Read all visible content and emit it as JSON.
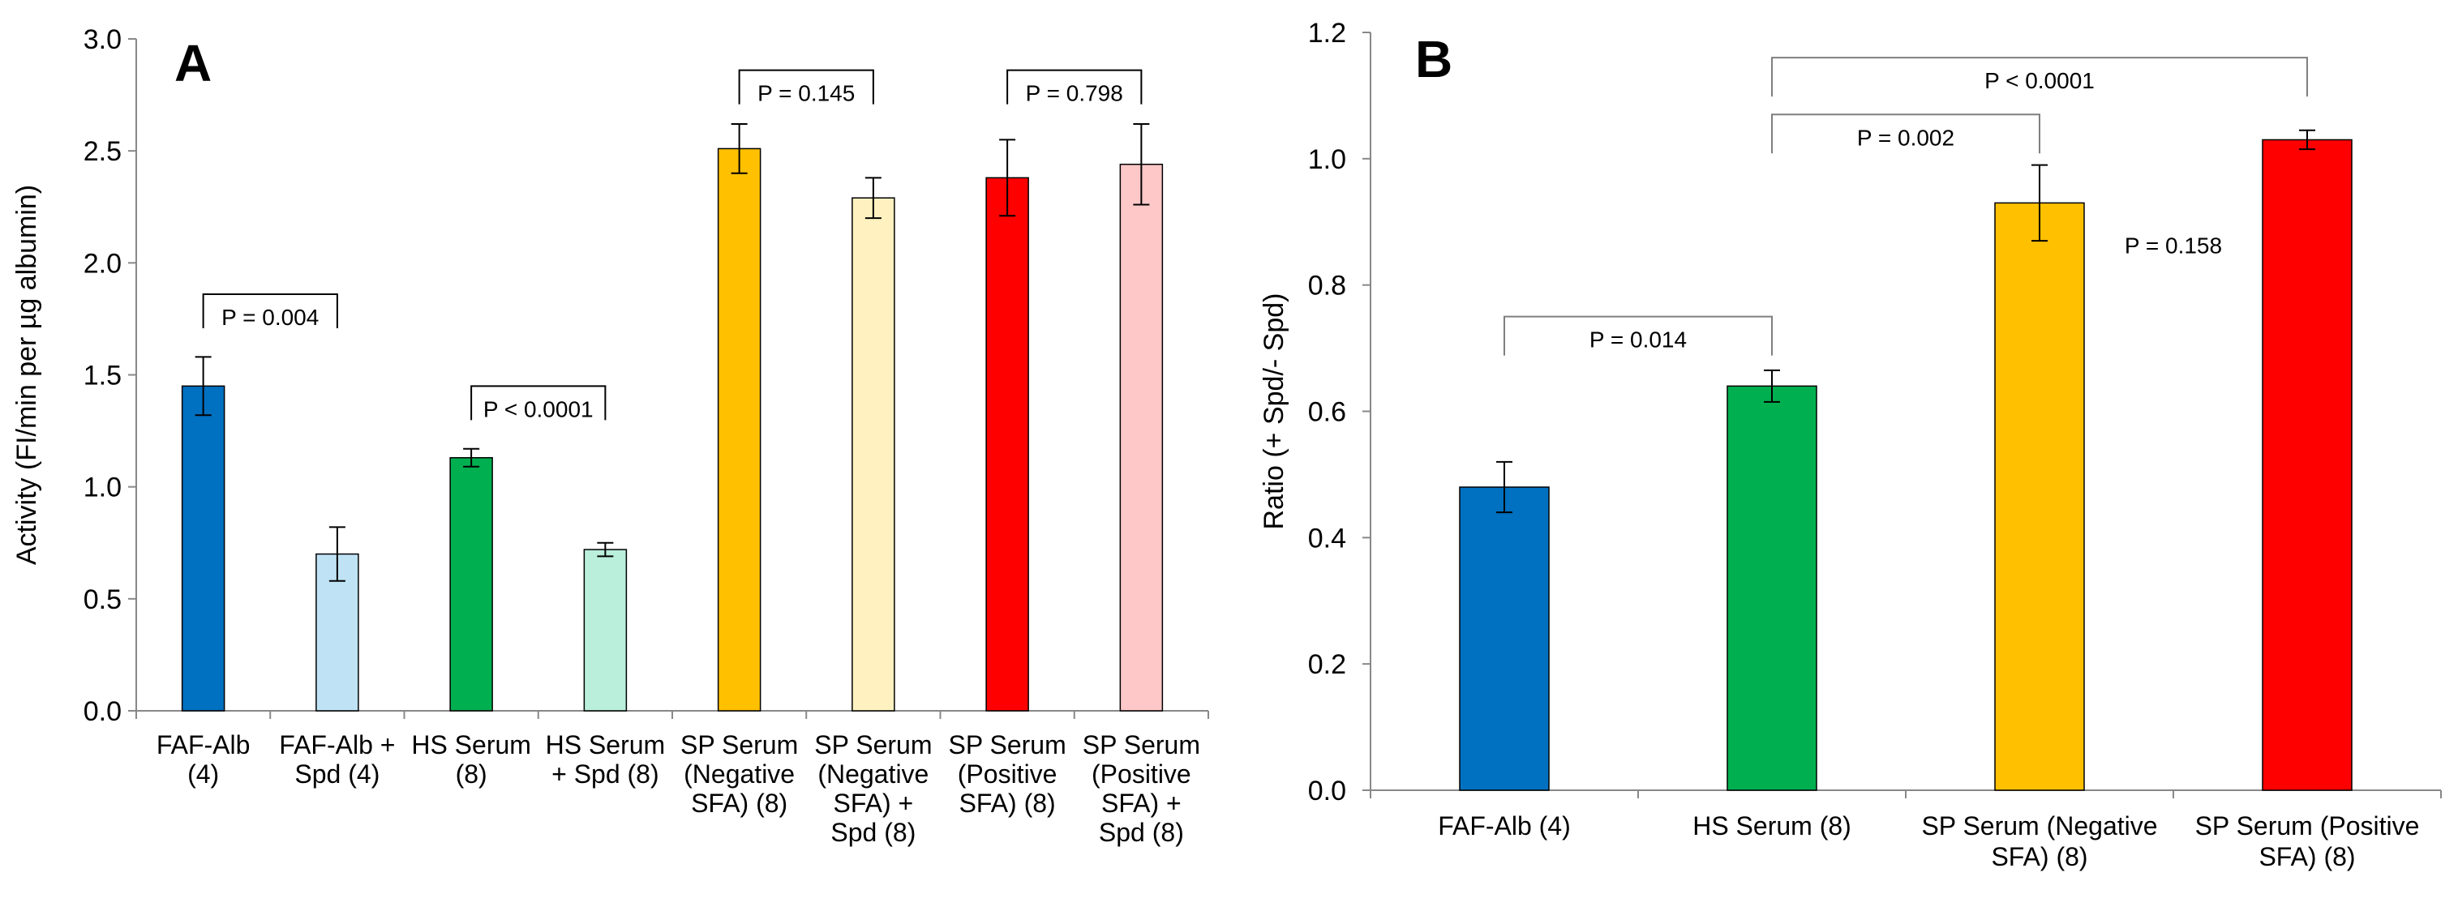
{
  "chart_data": [
    {
      "type": "bar",
      "panel_label": "A",
      "title": "",
      "xlabel": "",
      "ylabel": "Activity (FI/min per µg albumin)",
      "ylim": [
        0,
        3.0
      ],
      "yticks": [
        "0.0",
        "0.5",
        "1.0",
        "1.5",
        "2.0",
        "2.5",
        "3.0"
      ],
      "categories": [
        [
          "FAF-Alb",
          "(4)"
        ],
        [
          "FAF-Alb +",
          "Spd (4)"
        ],
        [
          "HS Serum",
          "(8)"
        ],
        [
          "HS Serum",
          "+ Spd (8)"
        ],
        [
          "SP Serum",
          "(Negative",
          "SFA) (8)"
        ],
        [
          "SP Serum",
          "(Negative",
          "SFA) +",
          "Spd (8)"
        ],
        [
          "SP Serum",
          "(Positive",
          "SFA) (8)"
        ],
        [
          "SP Serum",
          "(Positive",
          "SFA) +",
          "Spd (8)"
        ]
      ],
      "values": [
        1.45,
        0.7,
        1.13,
        0.72,
        2.51,
        2.29,
        2.38,
        2.44
      ],
      "errors": [
        0.13,
        0.12,
        0.04,
        0.03,
        0.11,
        0.09,
        0.17,
        0.18
      ],
      "colors": [
        "#0070c0",
        "#bfe3f5",
        "#00b050",
        "#b9efdb",
        "#ffc000",
        "#fff2c0",
        "#ff0000",
        "#ffc8c8"
      ],
      "annotations": [
        {
          "text": "P = 0.004",
          "from": 0,
          "to": 1,
          "level": 1.86
        },
        {
          "text": "P < 0.0001",
          "from": 2,
          "to": 3,
          "level": 1.45
        },
        {
          "text": "P = 0.145",
          "from": 4,
          "to": 5,
          "level": 2.86
        },
        {
          "text": "P = 0.798",
          "from": 6,
          "to": 7,
          "level": 2.86
        }
      ]
    },
    {
      "type": "bar",
      "panel_label": "B",
      "title": "",
      "xlabel": "",
      "ylabel": "Ratio (+ Spd/- Spd)",
      "ylim": [
        0,
        1.2
      ],
      "yticks": [
        "0.0",
        "0.2",
        "0.4",
        "0.6",
        "0.8",
        "1.0",
        "1.2"
      ],
      "categories": [
        [
          "FAF-Alb (4)"
        ],
        [
          "HS Serum (8)"
        ],
        [
          "SP Serum (Negative",
          "SFA) (8)"
        ],
        [
          "SP Serum (Positive",
          "SFA) (8)"
        ]
      ],
      "values": [
        0.48,
        0.64,
        0.93,
        1.03
      ],
      "errors": [
        0.04,
        0.025,
        0.06,
        0.015
      ],
      "colors": [
        "#0070c0",
        "#00b050",
        "#ffc000",
        "#ff0000"
      ],
      "annotations": [
        {
          "text": "P = 0.014",
          "from": 0,
          "to": 1,
          "level": 0.75
        },
        {
          "text": "P = 0.002",
          "from": 1,
          "to": 2,
          "level": 1.07
        },
        {
          "text": "P < 0.0001",
          "from": 1,
          "to": 3,
          "level": 1.16
        },
        {
          "text": "P = 0.158",
          "label_only": true,
          "near": 2.5,
          "level": 0.85
        }
      ]
    }
  ]
}
